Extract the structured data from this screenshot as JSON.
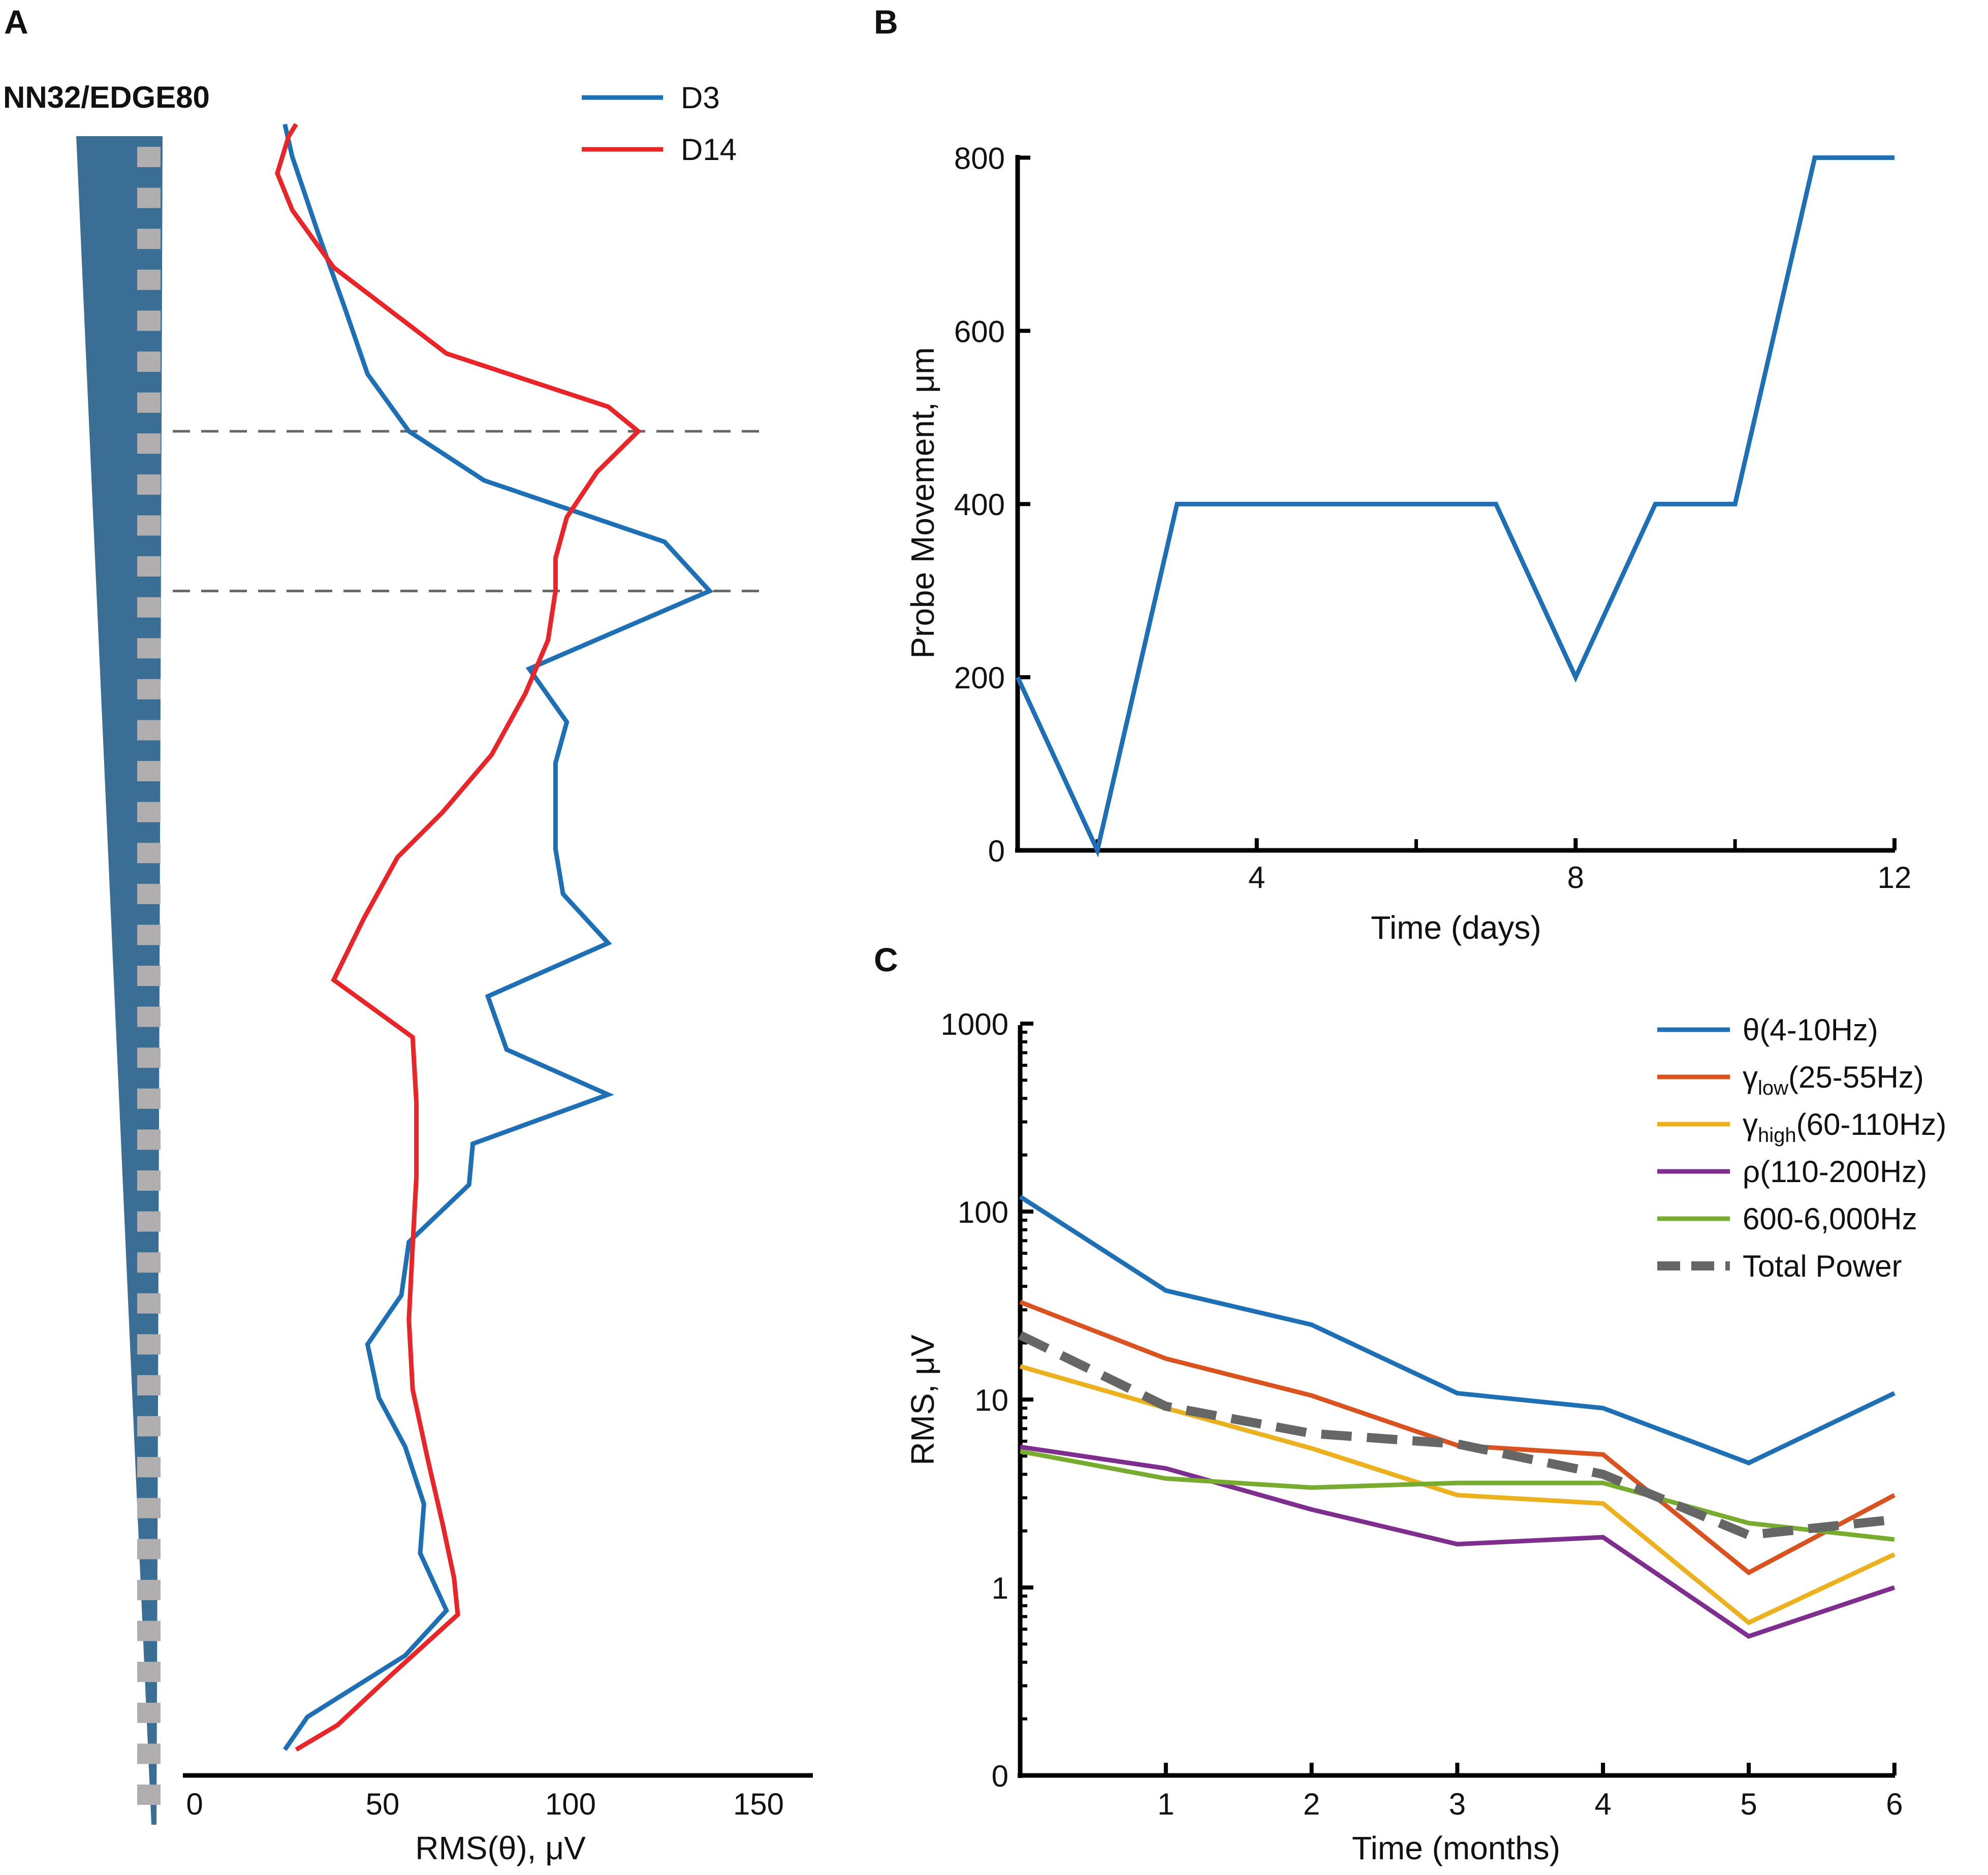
{
  "figure": {
    "panel_letters": [
      "A",
      "B",
      "C"
    ],
    "probe_label": "NN32/EDGE80",
    "colors": {
      "axis": "#000000",
      "dashed": "#666666",
      "probe_body": "#3a6e94",
      "probe_sites": "#b0aeae"
    }
  },
  "chart_data": [
    {
      "id": "A",
      "type": "line",
      "orientation": "horizontal-values-vs-depth",
      "title": "",
      "xlabel": "RMS(θ), μV",
      "ylabel": "",
      "xlim": [
        -3,
        162
      ],
      "xticks": [
        0,
        50,
        100,
        150
      ],
      "x_tick_labels": [
        "0",
        "50",
        "100",
        "150"
      ],
      "channel_count": 41,
      "channel_note": "channel index 0 = top site, 40 = bottom site",
      "dashed_reference_channels": [
        6.7,
        10.6
      ],
      "legend_position": "top-right",
      "series": [
        {
          "name": "D3",
          "color": "#1f6fb5",
          "channel": [
            -0.8,
            0,
            1.9,
            3.7,
            5.3,
            6.7,
            7.9,
            9.4,
            10.6,
            12.5,
            13.8,
            14.8,
            15.8,
            16.9,
            18.0,
            19.2,
            20.5,
            21.8,
            22.9,
            24.1,
            25.1,
            26.5,
            27.8,
            29.0,
            30.3,
            31.5,
            32.9,
            34.1,
            35.5,
            36.6,
            38.1,
            38.9
          ],
          "values": [
            24,
            26,
            33,
            40,
            46,
            57,
            77,
            125,
            137,
            89,
            99,
            96,
            96,
            96,
            98,
            110,
            78,
            83,
            110,
            74,
            73,
            57,
            55,
            46,
            49,
            56,
            61,
            60,
            67,
            56,
            30,
            24
          ]
        },
        {
          "name": "D14",
          "color": "#e8262a",
          "channel": [
            -0.8,
            -0.5,
            0.4,
            1.3,
            2.7,
            4.8,
            6.1,
            6.7,
            7.7,
            8.8,
            9.8,
            10.6,
            11.8,
            13.1,
            14.6,
            16.0,
            17.1,
            18.6,
            20.1,
            21.5,
            23.1,
            24.9,
            26.6,
            28.4,
            30.1,
            31.8,
            33.4,
            34.7,
            35.6,
            37.1,
            38.3,
            38.9
          ],
          "values": [
            27,
            25,
            22,
            26,
            37,
            67,
            110,
            118,
            107,
            99,
            96,
            96,
            94,
            88,
            79,
            66,
            54,
            45,
            37,
            58,
            59,
            59,
            58,
            57,
            58,
            62,
            66,
            69,
            70,
            52,
            38,
            27
          ]
        }
      ]
    },
    {
      "id": "B",
      "type": "line",
      "title": "",
      "xlabel": "Time (days)",
      "ylabel": "Probe Movement, μm",
      "xlim": [
        1,
        12
      ],
      "ylim": [
        0,
        800
      ],
      "xticks": [
        4,
        8,
        12
      ],
      "x_tick_labels": [
        "4",
        "8",
        "12"
      ],
      "x_minor_ticks": [
        2,
        6,
        10
      ],
      "yticks": [
        0,
        200,
        400,
        600,
        800
      ],
      "y_tick_labels": [
        "0",
        "200",
        "400",
        "600",
        "800"
      ],
      "series": [
        {
          "name": "Probe Movement",
          "color": "#1f6fb5",
          "x": [
            1,
            2,
            3,
            7,
            8,
            9,
            10,
            11,
            12
          ],
          "values": [
            200,
            0,
            400,
            400,
            200,
            400,
            400,
            800,
            800
          ]
        }
      ]
    },
    {
      "id": "C",
      "type": "line",
      "yscale": "log",
      "title": "",
      "xlabel": "Time (months)",
      "ylabel": "RMS, μV",
      "xlim": [
        0,
        6
      ],
      "ylim": [
        0.1,
        1000
      ],
      "xticks": [
        1,
        2,
        3,
        4,
        5,
        6
      ],
      "x_tick_labels": [
        "1",
        "2",
        "3",
        "4",
        "5",
        "6"
      ],
      "yticks": [
        0.1,
        1,
        10,
        100,
        1000
      ],
      "y_tick_labels": [
        "0",
        "1",
        "10",
        "100",
        "1000"
      ],
      "legend_position": "top-right",
      "series": [
        {
          "name": "θ(4-10Hz)",
          "label_base": "θ(4-10Hz)",
          "label_sub": "",
          "label_tail": "",
          "color": "#1f6fb5",
          "dashed": false,
          "x": [
            0,
            1,
            2,
            3,
            4,
            5,
            6
          ],
          "values": [
            120,
            38,
            25,
            10.8,
            9,
            4.6,
            10.8
          ]
        },
        {
          "name": "γlow(25-55Hz)",
          "label_base": "γ",
          "label_sub": "low",
          "label_tail": "(25-55Hz)",
          "color": "#d95320",
          "dashed": false,
          "x": [
            0,
            1,
            2,
            3,
            4,
            5,
            6
          ],
          "values": [
            33,
            16.5,
            10.5,
            5.7,
            5.1,
            1.2,
            3.1
          ]
        },
        {
          "name": "γhigh(60-110Hz)",
          "label_base": "γ",
          "label_sub": "high",
          "label_tail": "(60-110Hz)",
          "color": "#ecb11f",
          "dashed": false,
          "x": [
            0,
            1,
            2,
            3,
            4,
            5,
            6
          ],
          "values": [
            15,
            9,
            5.5,
            3.1,
            2.8,
            0.65,
            1.5
          ]
        },
        {
          "name": "ρ(110-200Hz)",
          "label_base": "ρ(110-200Hz)",
          "label_sub": "",
          "label_tail": "",
          "color": "#7e2f8e",
          "dashed": false,
          "x": [
            0,
            1,
            2,
            3,
            4,
            5,
            6
          ],
          "values": [
            5.6,
            4.3,
            2.6,
            1.7,
            1.85,
            0.55,
            1.0
          ]
        },
        {
          "name": "600-6,000Hz",
          "label_base": "600-6,000Hz",
          "label_sub": "",
          "label_tail": "",
          "color": "#77ac30",
          "dashed": false,
          "x": [
            0,
            1,
            2,
            3,
            4,
            5,
            6
          ],
          "values": [
            5.3,
            3.8,
            3.4,
            3.6,
            3.6,
            2.2,
            1.8
          ]
        },
        {
          "name": "Total Power",
          "label_base": "Total Power",
          "label_sub": "",
          "label_tail": "",
          "color": "#666666",
          "dashed": true,
          "x": [
            0,
            1,
            2,
            3,
            4,
            5,
            6
          ],
          "values": [
            22,
            9.2,
            6.6,
            5.8,
            4,
            1.9,
            2.3
          ]
        }
      ]
    }
  ]
}
